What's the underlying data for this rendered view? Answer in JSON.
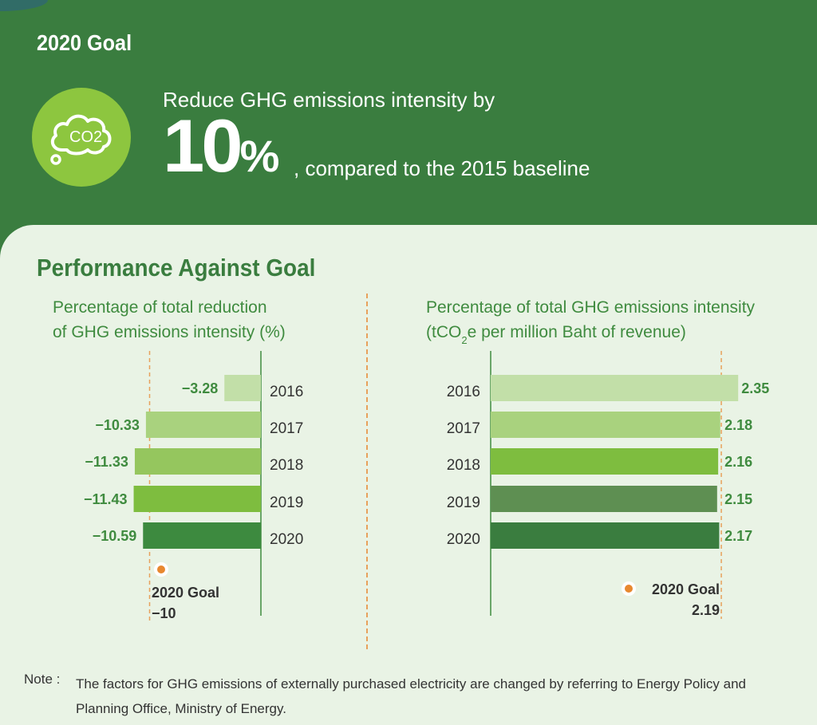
{
  "header": {
    "title": "2020 Goal",
    "icon": "co2-cloud-icon",
    "icon_text": "CO2",
    "goal_intro": "Reduce GHG emissions intensity by",
    "goal_value": "10",
    "goal_unit": "%",
    "goal_tail": ", compared to the 2015 baseline"
  },
  "section_title": "Performance Against Goal",
  "colors": {
    "dark_green": "#3a7d3f",
    "panel_bg": "#e9f3e5",
    "goal_dot": "#e8882f",
    "bar_2016": "#c2dfa8",
    "bar_2017": "#a9d27e",
    "bar_2018": "#95c65e",
    "bar_2019": "#7ebd3f",
    "bar_2020_left": "#3d8a3f",
    "bar_2019_right": "#5e8f52"
  },
  "chart_data": [
    {
      "type": "bar",
      "orientation": "horizontal",
      "title_line1": "Percentage of total reduction",
      "title_line2": "of GHG emissions intensity (%)",
      "categories": [
        "2016",
        "2017",
        "2018",
        "2019",
        "2020"
      ],
      "values": [
        -3.28,
        -10.33,
        -11.33,
        -11.43,
        -10.59
      ],
      "value_labels": [
        "−3.28",
        "−10.33",
        "−11.33",
        "−11.43",
        "−10.59"
      ],
      "goal": {
        "label": "2020 Goal",
        "value": -10,
        "value_label": "−10"
      }
    },
    {
      "type": "bar",
      "orientation": "horizontal",
      "title_line1": "Percentage of total GHG emissions intensity",
      "title_line2_pre": "(tCO",
      "title_line2_sub": "2",
      "title_line2_post": "e per million Baht of revenue)",
      "categories": [
        "2016",
        "2017",
        "2018",
        "2019",
        "2020"
      ],
      "values": [
        2.35,
        2.18,
        2.16,
        2.15,
        2.17
      ],
      "value_labels": [
        "2.35",
        "2.18",
        "2.16",
        "2.15",
        "2.17"
      ],
      "goal": {
        "label": "2020 Goal",
        "value": 2.19,
        "value_label": "2.19"
      }
    }
  ],
  "note": {
    "label": "Note :",
    "text": "The factors for GHG emissions of externally purchased electricity are changed by referring to Energy Policy and Planning Office, Ministry of Energy."
  }
}
